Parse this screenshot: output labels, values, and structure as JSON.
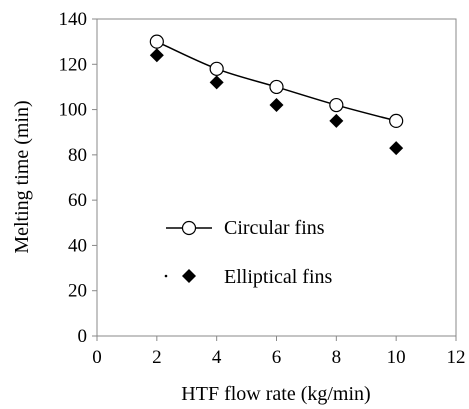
{
  "chart_data": {
    "type": "scatter",
    "xlabel": "HTF flow rate (kg/min)",
    "ylabel": "Melting time (min)",
    "xlim": [
      0,
      12
    ],
    "ylim": [
      0,
      140
    ],
    "xticks": [
      0,
      2,
      4,
      6,
      8,
      10,
      12
    ],
    "yticks": [
      0,
      20,
      40,
      60,
      80,
      100,
      120,
      140
    ],
    "grid": false,
    "legend_position": "center-left inside plot",
    "series": [
      {
        "name": "Circular fins",
        "marker": "open-circle",
        "line": "smooth",
        "color": "#000000",
        "x": [
          2,
          4,
          6,
          8,
          10
        ],
        "y": [
          130,
          118,
          110,
          102,
          95
        ]
      },
      {
        "name": "Elliptical fins",
        "marker": "filled-diamond",
        "line": "none",
        "color": "#000000",
        "x": [
          2,
          4,
          6,
          8,
          10
        ],
        "y": [
          124,
          112,
          102,
          95,
          83
        ]
      }
    ]
  }
}
